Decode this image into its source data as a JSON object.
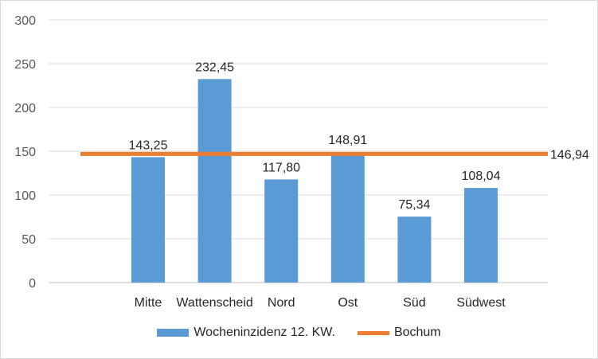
{
  "chart_data": {
    "type": "bar",
    "categories": [
      "Mitte",
      "Wattenscheid",
      "Nord",
      "Ost",
      "Süd",
      "Südwest"
    ],
    "series": [
      {
        "name": "Wocheninzidenz 12. KW.",
        "type": "bar",
        "color": "#5b9bd5",
        "values": [
          143.25,
          232.45,
          117.8,
          148.91,
          75.34,
          108.04
        ],
        "labels": [
          "143,25",
          "232,45",
          "117,80",
          "148,91",
          "75,34",
          "108,04"
        ]
      },
      {
        "name": "Bochum",
        "type": "line",
        "color": "#ed7d31",
        "value": 146.94,
        "label": "146,94"
      }
    ],
    "y_ticks": [
      "0",
      "50",
      "100",
      "150",
      "200",
      "250",
      "300"
    ],
    "ylim": [
      0,
      300
    ],
    "grid": true,
    "legend_position": "bottom"
  }
}
